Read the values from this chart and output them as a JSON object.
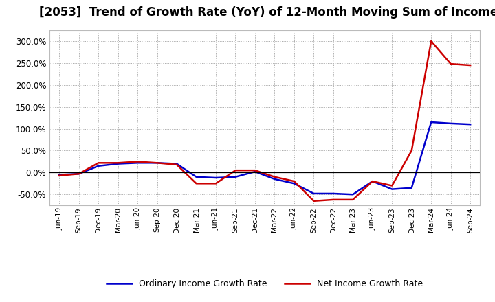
{
  "title": "[2053]  Trend of Growth Rate (YoY) of 12-Month Moving Sum of Incomes",
  "title_fontsize": 12,
  "background_color": "#ffffff",
  "plot_bg_color": "#ffffff",
  "grid_color": "#aaaaaa",
  "line_color_ordinary": "#0000cc",
  "line_color_net": "#cc0000",
  "legend_ordinary": "Ordinary Income Growth Rate",
  "legend_net": "Net Income Growth Rate",
  "x_labels": [
    "Jun-19",
    "Sep-19",
    "Dec-19",
    "Mar-20",
    "Jun-20",
    "Sep-20",
    "Dec-20",
    "Mar-21",
    "Jun-21",
    "Sep-21",
    "Dec-21",
    "Mar-22",
    "Jun-22",
    "Sep-22",
    "Dec-22",
    "Mar-23",
    "Jun-23",
    "Sep-23",
    "Dec-23",
    "Mar-24",
    "Jun-24",
    "Sep-24"
  ],
  "ordinary": [
    -5,
    -3,
    15,
    20,
    22,
    22,
    20,
    -10,
    -12,
    -10,
    2,
    -15,
    -25,
    -48,
    -48,
    -50,
    -20,
    -38,
    -35,
    115,
    112,
    110
  ],
  "net": [
    -7,
    -3,
    22,
    22,
    25,
    22,
    18,
    -25,
    -25,
    5,
    5,
    -10,
    -20,
    -65,
    -62,
    -62,
    -20,
    -30,
    50,
    300,
    248,
    245
  ],
  "ylim": [
    -75,
    325
  ],
  "yticks": [
    -50,
    0,
    50,
    100,
    150,
    200,
    250,
    300
  ],
  "linewidth": 1.8
}
